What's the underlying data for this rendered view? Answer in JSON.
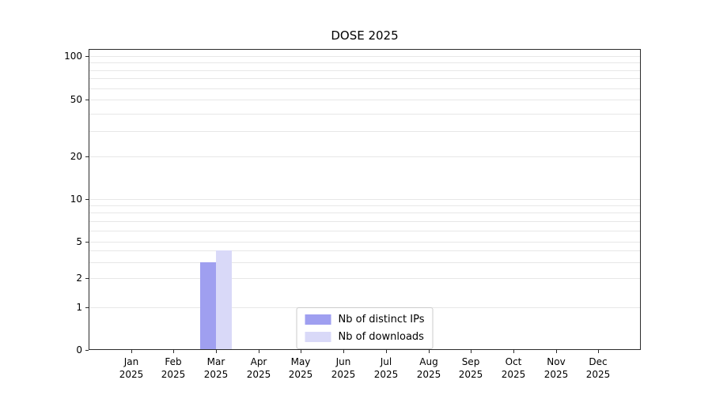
{
  "chart_data": {
    "type": "bar",
    "title": "DOSE 2025",
    "categories": [
      {
        "month": "Jan",
        "year": "2025"
      },
      {
        "month": "Feb",
        "year": "2025"
      },
      {
        "month": "Mar",
        "year": "2025"
      },
      {
        "month": "Apr",
        "year": "2025"
      },
      {
        "month": "May",
        "year": "2025"
      },
      {
        "month": "Jun",
        "year": "2025"
      },
      {
        "month": "Jul",
        "year": "2025"
      },
      {
        "month": "Aug",
        "year": "2025"
      },
      {
        "month": "Sep",
        "year": "2025"
      },
      {
        "month": "Oct",
        "year": "2025"
      },
      {
        "month": "Nov",
        "year": "2025"
      },
      {
        "month": "Dec",
        "year": "2025"
      }
    ],
    "series": [
      {
        "name": "Nb of distinct IPs",
        "color": "#9f9ff0",
        "values": [
          0,
          0,
          3,
          0,
          0,
          0,
          0,
          0,
          0,
          0,
          0,
          0
        ]
      },
      {
        "name": "Nb of downloads",
        "color": "#d9d9f8",
        "values": [
          0,
          0,
          4,
          0,
          0,
          0,
          0,
          0,
          0,
          0,
          0,
          0
        ]
      }
    ],
    "yticks": [
      0,
      1,
      2,
      5,
      10,
      20,
      50,
      100
    ],
    "yscale": "symlog",
    "ylim": [
      0,
      110
    ],
    "xlabel": "",
    "ylabel": "",
    "grid": "horizontal",
    "legend_position": "lower center"
  }
}
